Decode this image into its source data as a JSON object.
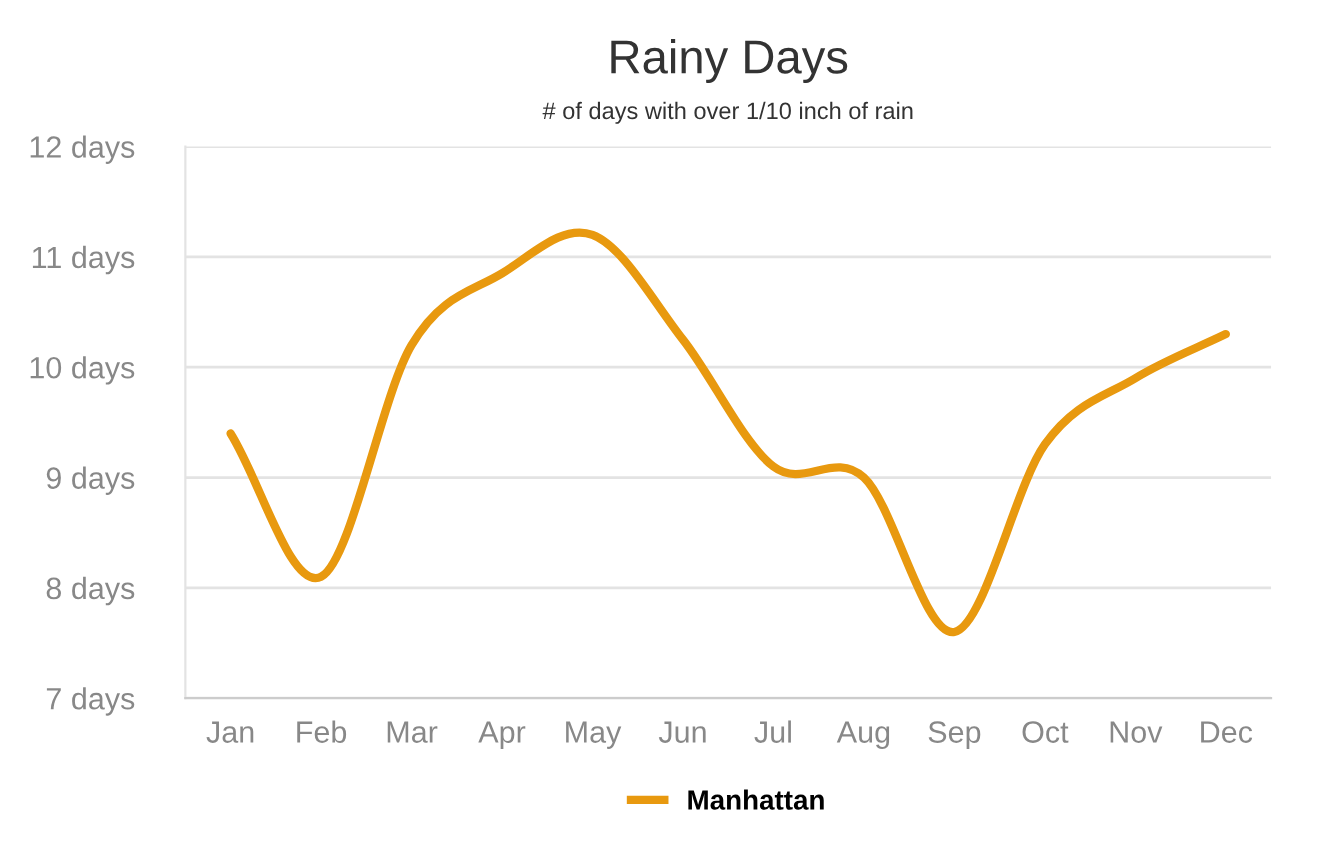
{
  "chart_data": {
    "type": "line",
    "title": "Rainy Days",
    "subtitle": "# of days with over 1/10 inch of rain",
    "categories": [
      "Jan",
      "Feb",
      "Mar",
      "Apr",
      "May",
      "Jun",
      "Jul",
      "Aug",
      "Sep",
      "Oct",
      "Nov",
      "Dec"
    ],
    "series": [
      {
        "name": "Manhattan",
        "color": "#e8990f",
        "values": [
          9.4,
          8.1,
          10.2,
          10.85,
          11.2,
          10.25,
          9.1,
          9.0,
          7.6,
          9.3,
          9.9,
          10.3
        ]
      }
    ],
    "ylim": [
      7,
      12
    ],
    "yticks": [
      {
        "value": 7,
        "label": "7 days"
      },
      {
        "value": 8,
        "label": "8 days"
      },
      {
        "value": 9,
        "label": "9 days"
      },
      {
        "value": 10,
        "label": "10 days"
      },
      {
        "value": 11,
        "label": "11 days"
      },
      {
        "value": 12,
        "label": "12 days"
      }
    ],
    "grid": "y",
    "legend": "bottom",
    "marker": "none",
    "line_style": "solid"
  }
}
